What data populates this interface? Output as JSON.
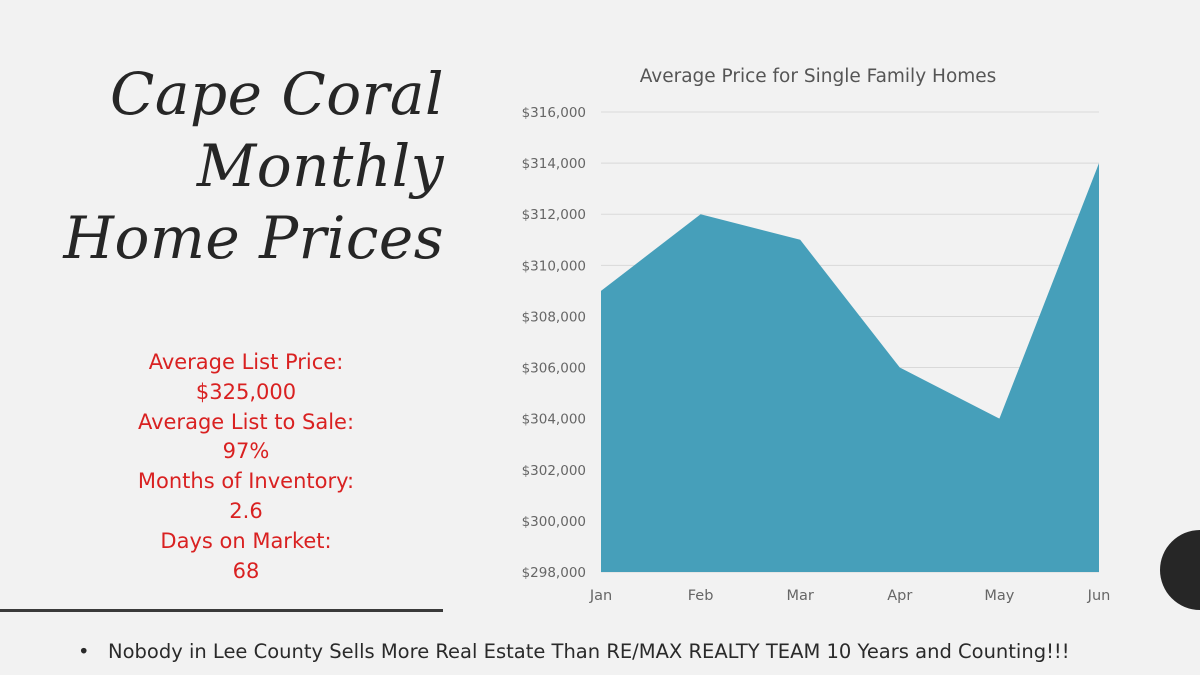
{
  "slide": {
    "title_lines": [
      "Cape Coral",
      "Monthly",
      "Home Prices"
    ],
    "stats_lines": [
      "Average List Price:",
      "$325,000",
      "Average List to Sale:",
      "97%",
      "Months of Inventory:",
      "2.6",
      "Days on Market:",
      "68"
    ],
    "footer_bullet": "•",
    "footer_text": "Nobody  in Lee County Sells More Real Estate Than RE/MAX REALTY  TEAM  10 Years and Counting!!!",
    "colors": {
      "title": "#262626",
      "stats": "#d92121",
      "area_fill": "#469fba",
      "gridline": "#d9d9d9",
      "axis_text": "#666666"
    }
  },
  "chart_data": {
    "type": "area",
    "title": "Average Price for Single Family Homes",
    "categories": [
      "Jan",
      "Feb",
      "Mar",
      "Apr",
      "May",
      "Jun"
    ],
    "values": [
      309000,
      312000,
      311000,
      306000,
      304000,
      314000
    ],
    "ylim": [
      298000,
      316000
    ],
    "yticks": [
      298000,
      300000,
      302000,
      304000,
      306000,
      308000,
      310000,
      312000,
      314000,
      316000
    ],
    "ytick_labels": [
      "$298,000",
      "$300,000",
      "$302,000",
      "$304,000",
      "$306,000",
      "$308,000",
      "$310,000",
      "$312,000",
      "$314,000",
      "$316,000"
    ],
    "xlabel": "",
    "ylabel": "",
    "grid": true,
    "legend": "none"
  }
}
